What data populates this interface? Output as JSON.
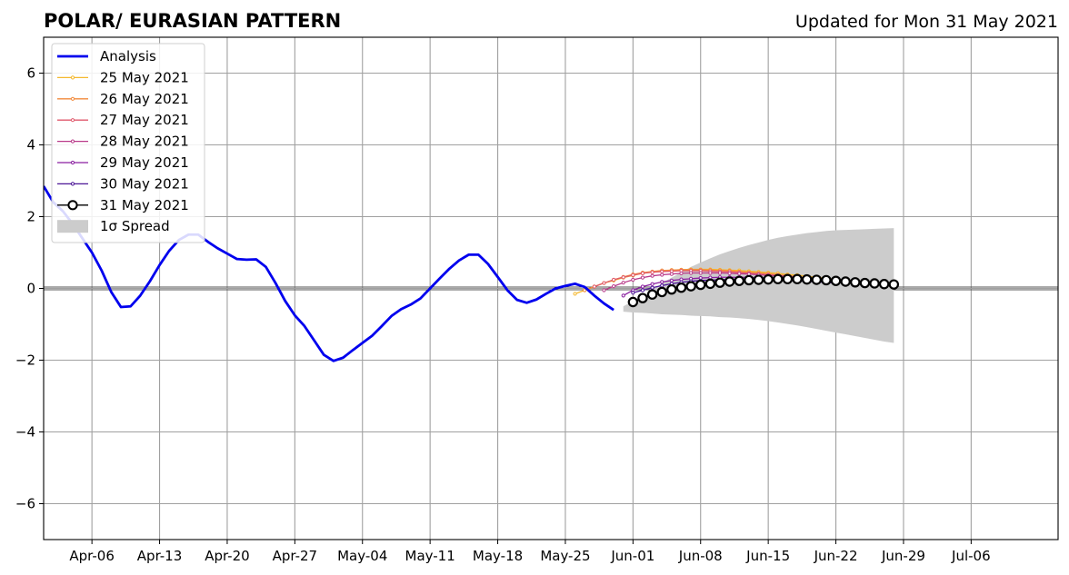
{
  "chart_data": {
    "type": "line",
    "title": "POLAR/ EURASIAN  PATTERN",
    "subtitle": "Updated for Mon 31 May 2021",
    "xlabel": "",
    "ylabel": "",
    "x_start": "2021-04-01",
    "x_end": "2021-07-15",
    "ylim": [
      -7,
      7
    ],
    "grid": true,
    "legend_position": "top-left",
    "x_ticks": [
      {
        "date": "2021-04-06",
        "label": "Apr-06"
      },
      {
        "date": "2021-04-13",
        "label": "Apr-13"
      },
      {
        "date": "2021-04-20",
        "label": "Apr-20"
      },
      {
        "date": "2021-04-27",
        "label": "Apr-27"
      },
      {
        "date": "2021-05-04",
        "label": "May-04"
      },
      {
        "date": "2021-05-11",
        "label": "May-11"
      },
      {
        "date": "2021-05-18",
        "label": "May-18"
      },
      {
        "date": "2021-05-25",
        "label": "May-25"
      },
      {
        "date": "2021-06-01",
        "label": "Jun-01"
      },
      {
        "date": "2021-06-08",
        "label": "Jun-08"
      },
      {
        "date": "2021-06-15",
        "label": "Jun-15"
      },
      {
        "date": "2021-06-22",
        "label": "Jun-22"
      },
      {
        "date": "2021-06-29",
        "label": "Jun-29"
      },
      {
        "date": "2021-07-06",
        "label": "Jul-06"
      }
    ],
    "y_ticks": [
      {
        "value": 6,
        "label": "6"
      },
      {
        "value": 4,
        "label": "4"
      },
      {
        "value": 2,
        "label": "2"
      },
      {
        "value": 0,
        "label": "0"
      },
      {
        "value": -2,
        "label": "−2"
      },
      {
        "value": -4,
        "label": "−4"
      },
      {
        "value": -6,
        "label": "−6"
      }
    ],
    "analysis": {
      "name": "Analysis",
      "color": "#0000ee",
      "start_date": "2021-04-01",
      "values": [
        2.85,
        2.4,
        2.15,
        1.8,
        1.4,
        1.0,
        0.5,
        -0.1,
        -0.52,
        -0.5,
        -0.2,
        0.2,
        0.65,
        1.05,
        1.35,
        1.5,
        1.5,
        1.3,
        1.12,
        0.97,
        0.82,
        0.8,
        0.81,
        0.6,
        0.15,
        -0.35,
        -0.75,
        -1.05,
        -1.45,
        -1.85,
        -2.02,
        -1.93,
        -1.72,
        -1.52,
        -1.32,
        -1.05,
        -0.77,
        -0.58,
        -0.45,
        -0.28,
        0.0,
        0.28,
        0.55,
        0.78,
        0.94,
        0.94,
        0.68,
        0.32,
        -0.05,
        -0.32,
        -0.4,
        -0.31,
        -0.15,
        0.0,
        0.07,
        0.13,
        0.04,
        -0.2,
        -0.42,
        -0.6
      ]
    },
    "spread": {
      "name": "1σ Spread",
      "color": "#cccccc",
      "start_date": "2021-05-31",
      "upper": [
        -0.5,
        -0.35,
        -0.2,
        -0.05,
        0.15,
        0.3,
        0.45,
        0.6,
        0.72,
        0.84,
        0.95,
        1.04,
        1.13,
        1.21,
        1.28,
        1.35,
        1.41,
        1.46,
        1.5,
        1.54,
        1.57,
        1.6,
        1.62,
        1.63,
        1.64,
        1.65,
        1.66,
        1.67,
        1.68
      ],
      "lower": [
        -0.65,
        -0.67,
        -0.68,
        -0.7,
        -0.72,
        -0.73,
        -0.74,
        -0.76,
        -0.77,
        -0.78,
        -0.8,
        -0.81,
        -0.83,
        -0.85,
        -0.88,
        -0.91,
        -0.95,
        -0.99,
        -1.03,
        -1.08,
        -1.13,
        -1.18,
        -1.23,
        -1.28,
        -1.33,
        -1.38,
        -1.43,
        -1.48,
        -1.52
      ]
    },
    "forecasts": [
      {
        "name": "25 May 2021",
        "color": "#f5b82e",
        "start_date": "2021-05-26",
        "values": [
          -0.15,
          -0.05,
          0.05,
          0.15,
          0.22,
          0.3,
          0.36,
          0.42,
          0.46,
          0.49,
          0.51,
          0.52,
          0.53,
          0.53,
          0.53,
          0.52,
          0.51,
          0.5,
          0.48,
          0.46,
          0.44,
          0.42,
          0.39,
          0.37,
          0.34,
          0.31,
          0.28,
          0.25
        ]
      },
      {
        "name": "26 May 2021",
        "color": "#f28a3c",
        "start_date": "2021-05-27",
        "values": [
          -0.05,
          0.05,
          0.15,
          0.24,
          0.32,
          0.39,
          0.44,
          0.47,
          0.5,
          0.51,
          0.52,
          0.52,
          0.52,
          0.51,
          0.5,
          0.49,
          0.47,
          0.45,
          0.43,
          0.41,
          0.38,
          0.36,
          0.33,
          0.3,
          0.27,
          0.24
        ]
      },
      {
        "name": "27 May 2021",
        "color": "#e05a6d",
        "start_date": "2021-05-28",
        "values": [
          0.05,
          0.15,
          0.24,
          0.31,
          0.37,
          0.42,
          0.45,
          0.47,
          0.48,
          0.49,
          0.49,
          0.49,
          0.48,
          0.47,
          0.46,
          0.44,
          0.42,
          0.4,
          0.38,
          0.36,
          0.33,
          0.31,
          0.28,
          0.26,
          0.24
        ]
      },
      {
        "name": "28 May 2021",
        "color": "#b93a8a",
        "start_date": "2021-05-29",
        "values": [
          -0.05,
          0.06,
          0.16,
          0.24,
          0.3,
          0.35,
          0.38,
          0.4,
          0.42,
          0.43,
          0.43,
          0.43,
          0.43,
          0.42,
          0.41,
          0.4,
          0.38,
          0.36,
          0.35,
          0.33,
          0.31,
          0.29,
          0.27,
          0.25
        ]
      },
      {
        "name": "29 May 2021",
        "color": "#8a1fa0",
        "start_date": "2021-05-31",
        "values": [
          -0.2,
          -0.05,
          0.05,
          0.12,
          0.18,
          0.22,
          0.25,
          0.27,
          0.29,
          0.3,
          0.31,
          0.31,
          0.31,
          0.31,
          0.3,
          0.29,
          0.28,
          0.27,
          0.26,
          0.24,
          0.23,
          0.22,
          0.2,
          0.19
        ]
      },
      {
        "name": "30 May 2021",
        "color": "#4b1596",
        "start_date": "2021-06-01",
        "values": [
          -0.12,
          -0.05,
          0.02,
          0.08,
          0.13,
          0.17,
          0.2,
          0.22,
          0.23,
          0.24,
          0.25,
          0.25,
          0.25,
          0.24,
          0.24,
          0.23,
          0.22,
          0.21,
          0.2,
          0.18,
          0.17,
          0.15
        ]
      },
      {
        "name": "31 May 2021",
        "color": "#000000",
        "start_date": "2021-06-01",
        "highlight": true,
        "values": [
          -0.38,
          -0.27,
          -0.17,
          -0.1,
          -0.03,
          0.02,
          0.06,
          0.1,
          0.13,
          0.16,
          0.19,
          0.21,
          0.23,
          0.24,
          0.25,
          0.26,
          0.26,
          0.26,
          0.25,
          0.24,
          0.23,
          0.21,
          0.19,
          0.17,
          0.15,
          0.14,
          0.12,
          0.11
        ]
      }
    ]
  }
}
